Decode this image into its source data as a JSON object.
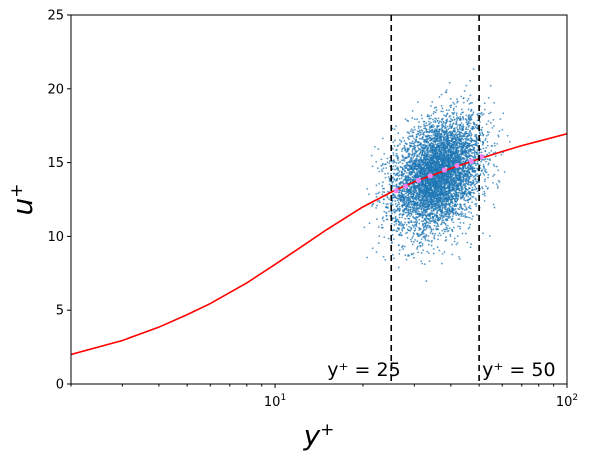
{
  "chart_data": {
    "type": "scatter",
    "xscale": "log",
    "xlim": [
      2,
      100
    ],
    "ylim": [
      0,
      25
    ],
    "xlabel": "y^+",
    "ylabel": "u^+",
    "yticks": [
      0,
      5,
      10,
      15,
      20,
      25
    ],
    "yticklabels": [
      "0",
      "5",
      "10",
      "15",
      "20",
      "25"
    ],
    "xticks_major": [
      10,
      100
    ],
    "xticklabels": [
      {
        "base": "10",
        "exp": "1"
      },
      {
        "base": "10",
        "exp": "2"
      }
    ],
    "grid": false,
    "legend": "none",
    "series": [
      {
        "kind": "scatter-cloud",
        "color": "#1f77b4",
        "approx_count": 6000,
        "description": "dense point cloud",
        "x_range": [
          20,
          65
        ],
        "center_x": 36,
        "center_u_at_yplus_25": 13.0,
        "center_u_at_yplus_50": 15.3,
        "u_spread_sd": 1.8
      },
      {
        "kind": "line",
        "color": "#ff0000",
        "name": "",
        "x": [
          2,
          3,
          4,
          5,
          6,
          8,
          10,
          12,
          15,
          20,
          25,
          30,
          40,
          50,
          60,
          70,
          80,
          100
        ],
        "y": [
          2.0,
          2.95,
          3.85,
          4.7,
          5.45,
          6.85,
          8.1,
          9.15,
          10.45,
          12.0,
          13.0,
          13.7,
          14.6,
          15.25,
          15.75,
          16.15,
          16.45,
          16.95
        ]
      },
      {
        "kind": "scatter",
        "color": "#ee82ee",
        "name": "",
        "x": [
          26,
          28,
          31,
          34,
          38,
          42,
          47,
          51
        ],
        "y": [
          13.1,
          13.4,
          13.8,
          14.1,
          14.5,
          14.8,
          15.1,
          15.4
        ]
      }
    ],
    "vlines": [
      {
        "x": 25,
        "style": "dashed",
        "color": "#000000"
      },
      {
        "x": 50,
        "style": "dashed",
        "color": "#000000"
      }
    ],
    "annotations": [
      {
        "text": "y⁺ = 25",
        "x": 25,
        "y": 0.4
      },
      {
        "text": "y⁺ = 50",
        "x": 50,
        "y": 0.4
      }
    ]
  }
}
